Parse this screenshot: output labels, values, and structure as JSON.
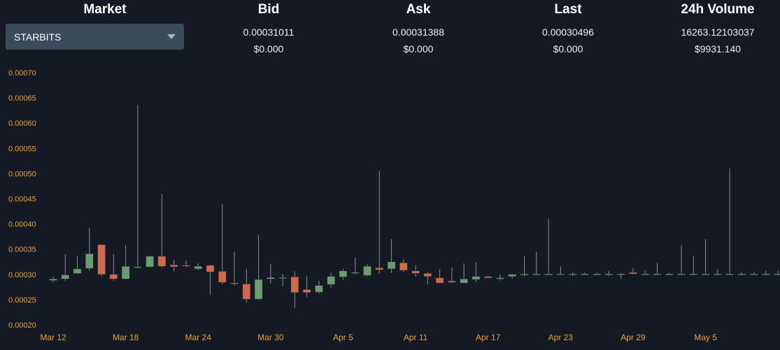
{
  "header": {
    "market_label": "Market",
    "bid_label": "Bid",
    "ask_label": "Ask",
    "last_label": "Last",
    "volume_label": "24h Volume"
  },
  "market_select": {
    "value": "STARBITS"
  },
  "stats": {
    "bid": "0.00031011",
    "bid_usd": "$0.000",
    "ask": "0.00031388",
    "ask_usd": "$0.000",
    "last": "0.00030496",
    "last_usd": "$0.000",
    "volume": "16263.12103037",
    "volume_usd": "$9931.140"
  },
  "colors": {
    "background": "#141924",
    "up": "#6a9e72",
    "down": "#cf6a4c",
    "axis_label": "#e8a23a",
    "wick": "#8a8f96"
  },
  "chart_data": {
    "type": "candlestick",
    "title": "",
    "xlabel": "",
    "ylabel": "",
    "ylim": [
      0.0002,
      0.0007
    ],
    "yticks": [
      "0.00020",
      "0.00025",
      "0.00030",
      "0.00035",
      "0.00040",
      "0.00045",
      "0.00050",
      "0.00055",
      "0.00060",
      "0.00065",
      "0.00070"
    ],
    "xtick_labels": [
      "Mar 12",
      "Mar 18",
      "Mar 24",
      "Mar 30",
      "Apr 5",
      "Apr 11",
      "Apr 17",
      "Apr 23",
      "Apr 29",
      "May 5"
    ],
    "grid": false,
    "candles": [
      {
        "date": "Mar 12",
        "open": 0.000288,
        "high": 0.000296,
        "low": 0.000284,
        "close": 0.000291
      },
      {
        "date": "Mar 13",
        "open": 0.000291,
        "high": 0.00034,
        "low": 0.000287,
        "close": 0.000299
      },
      {
        "date": "Mar 14",
        "open": 0.000302,
        "high": 0.000337,
        "low": 0.0003,
        "close": 0.000311
      },
      {
        "date": "Mar 15",
        "open": 0.000312,
        "high": 0.000392,
        "low": 0.000308,
        "close": 0.000341
      },
      {
        "date": "Mar 16",
        "open": 0.000359,
        "high": 0.000359,
        "low": 0.000296,
        "close": 0.0003
      },
      {
        "date": "Mar 17",
        "open": 0.0003,
        "high": 0.00034,
        "low": 0.000287,
        "close": 0.000291
      },
      {
        "date": "Mar 18",
        "open": 0.000291,
        "high": 0.000358,
        "low": 0.00029,
        "close": 0.000316
      },
      {
        "date": "Mar 19",
        "open": 0.000313,
        "high": 0.000636,
        "low": 0.000312,
        "close": 0.000315
      },
      {
        "date": "Mar 20",
        "open": 0.000315,
        "high": 0.000337,
        "low": 0.000314,
        "close": 0.000336
      },
      {
        "date": "Mar 21",
        "open": 0.000336,
        "high": 0.00046,
        "low": 0.000314,
        "close": 0.000316
      },
      {
        "date": "Mar 22",
        "open": 0.000319,
        "high": 0.000329,
        "low": 0.000306,
        "close": 0.000315
      },
      {
        "date": "Mar 23",
        "open": 0.000318,
        "high": 0.000327,
        "low": 0.000314,
        "close": 0.000317
      },
      {
        "date": "Mar 24",
        "open": 0.000311,
        "high": 0.000322,
        "low": 0.000308,
        "close": 0.000316
      },
      {
        "date": "Mar 25",
        "open": 0.000318,
        "high": 0.000318,
        "low": 0.000259,
        "close": 0.000305
      },
      {
        "date": "Mar 26",
        "open": 0.000306,
        "high": 0.000439,
        "low": 0.00028,
        "close": 0.000284
      },
      {
        "date": "Mar 27",
        "open": 0.000283,
        "high": 0.000345,
        "low": 0.000278,
        "close": 0.000281
      },
      {
        "date": "Mar 28",
        "open": 0.000281,
        "high": 0.00031,
        "low": 0.000244,
        "close": 0.000251
      },
      {
        "date": "Mar 29",
        "open": 0.000251,
        "high": 0.000378,
        "low": 0.000249,
        "close": 0.00029
      },
      {
        "date": "Mar 30",
        "open": 0.000291,
        "high": 0.000321,
        "low": 0.000282,
        "close": 0.000294
      },
      {
        "date": "Mar 31",
        "open": 0.000292,
        "high": 0.000301,
        "low": 0.000276,
        "close": 0.000294
      },
      {
        "date": "Apr 1",
        "open": 0.000295,
        "high": 0.000306,
        "low": 0.000234,
        "close": 0.000264
      },
      {
        "date": "Apr 2",
        "open": 0.00027,
        "high": 0.000296,
        "low": 0.000255,
        "close": 0.000264
      },
      {
        "date": "Apr 3",
        "open": 0.000265,
        "high": 0.000288,
        "low": 0.000262,
        "close": 0.000278
      },
      {
        "date": "Apr 4",
        "open": 0.00028,
        "high": 0.000303,
        "low": 0.000274,
        "close": 0.000296
      },
      {
        "date": "Apr 5",
        "open": 0.000295,
        "high": 0.000311,
        "low": 0.000289,
        "close": 0.000307
      },
      {
        "date": "Apr 6",
        "open": 0.000304,
        "high": 0.000334,
        "low": 0.0003,
        "close": 0.000304
      },
      {
        "date": "Apr 7",
        "open": 0.000298,
        "high": 0.00032,
        "low": 0.000296,
        "close": 0.000316
      },
      {
        "date": "Apr 8",
        "open": 0.000313,
        "high": 0.000505,
        "low": 0.000302,
        "close": 0.000309
      },
      {
        "date": "Apr 9",
        "open": 0.000311,
        "high": 0.00037,
        "low": 0.000303,
        "close": 0.000325
      },
      {
        "date": "Apr 10",
        "open": 0.000323,
        "high": 0.00033,
        "low": 0.000305,
        "close": 0.000308
      },
      {
        "date": "Apr 11",
        "open": 0.000307,
        "high": 0.000318,
        "low": 0.000296,
        "close": 0.000302
      },
      {
        "date": "Apr 12",
        "open": 0.000302,
        "high": 0.000304,
        "low": 0.00028,
        "close": 0.000296
      },
      {
        "date": "Apr 13",
        "open": 0.000293,
        "high": 0.00031,
        "low": 0.000282,
        "close": 0.000283
      },
      {
        "date": "Apr 14",
        "open": 0.000287,
        "high": 0.000314,
        "low": 0.000283,
        "close": 0.000284
      },
      {
        "date": "Apr 15",
        "open": 0.000283,
        "high": 0.000322,
        "low": 0.000283,
        "close": 0.000291
      },
      {
        "date": "Apr 16",
        "open": 0.00029,
        "high": 0.000324,
        "low": 0.000285,
        "close": 0.000296
      },
      {
        "date": "Apr 17",
        "open": 0.000296,
        "high": 0.000298,
        "low": 0.000292,
        "close": 0.000293
      },
      {
        "date": "Apr 18",
        "open": 0.000292,
        "high": 0.0003,
        "low": 0.000288,
        "close": 0.000293
      },
      {
        "date": "Apr 19",
        "open": 0.000296,
        "high": 0.000301,
        "low": 0.000292,
        "close": 0.0003
      },
      {
        "date": "Apr 20",
        "open": 0.0003,
        "high": 0.000336,
        "low": 0.000296,
        "close": 0.000301
      },
      {
        "date": "Apr 21",
        "open": 0.000301,
        "high": 0.000345,
        "low": 0.0003,
        "close": 0.000301
      },
      {
        "date": "Apr 22",
        "open": 0.000301,
        "high": 0.00041,
        "low": 0.0003,
        "close": 0.000301
      },
      {
        "date": "Apr 23",
        "open": 0.000301,
        "high": 0.000316,
        "low": 0.0003,
        "close": 0.000301
      },
      {
        "date": "Apr 24",
        "open": 0.000301,
        "high": 0.000305,
        "low": 0.000297,
        "close": 0.000301
      },
      {
        "date": "Apr 25",
        "open": 0.000301,
        "high": 0.000304,
        "low": 0.000299,
        "close": 0.000301
      },
      {
        "date": "Apr 26",
        "open": 0.000301,
        "high": 0.000303,
        "low": 0.000299,
        "close": 0.000301
      },
      {
        "date": "Apr 27",
        "open": 0.000301,
        "high": 0.000307,
        "low": 0.000297,
        "close": 0.000301
      },
      {
        "date": "Apr 28",
        "open": 0.000301,
        "high": 0.000303,
        "low": 0.000291,
        "close": 0.000301
      },
      {
        "date": "Apr 29",
        "open": 0.000304,
        "high": 0.000313,
        "low": 0.0003,
        "close": 0.000301
      },
      {
        "date": "Apr 30",
        "open": 0.000301,
        "high": 0.000308,
        "low": 0.000299,
        "close": 0.000301
      },
      {
        "date": "May 1",
        "open": 0.000301,
        "high": 0.000323,
        "low": 0.000299,
        "close": 0.000301
      },
      {
        "date": "May 2",
        "open": 0.000301,
        "high": 0.000303,
        "low": 0.000299,
        "close": 0.000301
      },
      {
        "date": "May 3",
        "open": 0.000301,
        "high": 0.000357,
        "low": 0.000299,
        "close": 0.000301
      },
      {
        "date": "May 4",
        "open": 0.000301,
        "high": 0.000337,
        "low": 0.000299,
        "close": 0.000301
      },
      {
        "date": "May 5",
        "open": 0.000301,
        "high": 0.00037,
        "low": 0.000299,
        "close": 0.000301
      },
      {
        "date": "May 6",
        "open": 0.000301,
        "high": 0.00031,
        "low": 0.000299,
        "close": 0.000301
      },
      {
        "date": "May 7",
        "open": 0.000301,
        "high": 0.00051,
        "low": 0.000299,
        "close": 0.000301
      },
      {
        "date": "May 8",
        "open": 0.000301,
        "high": 0.000304,
        "low": 0.000298,
        "close": 0.000301
      },
      {
        "date": "May 9",
        "open": 0.000301,
        "high": 0.000305,
        "low": 0.000299,
        "close": 0.000301
      },
      {
        "date": "May 10",
        "open": 0.000301,
        "high": 0.000307,
        "low": 0.000298,
        "close": 0.000301
      },
      {
        "date": "May 11",
        "open": 0.000301,
        "high": 0.000308,
        "low": 0.000299,
        "close": 0.000301
      },
      {
        "date": "May 12",
        "open": 0.000301,
        "high": 0.000304,
        "low": 0.00029,
        "close": 0.000301
      },
      {
        "date": "May 13",
        "open": 0.000301,
        "high": 0.000319,
        "low": 0.0003,
        "close": 0.00031
      }
    ]
  }
}
